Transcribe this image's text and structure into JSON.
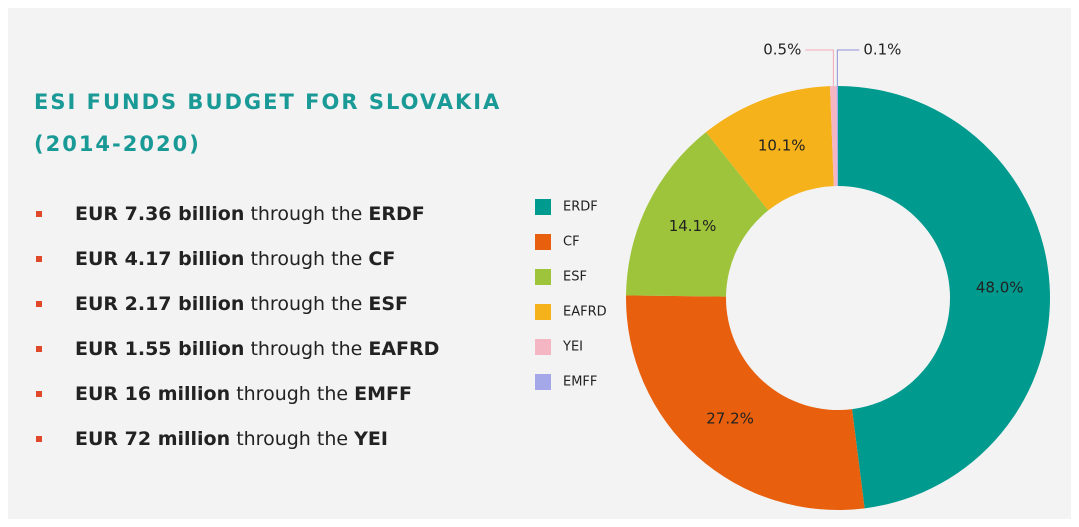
{
  "chart_data": {
    "type": "pie",
    "title": "ESI FUNDS BUDGET FOR SLOVAKIA",
    "subtitle": "(2014-2020)",
    "categories": [
      "ERDF",
      "CF",
      "ESF",
      "EAFRD",
      "YEI",
      "EMFF"
    ],
    "values": [
      48.0,
      27.2,
      14.1,
      10.1,
      0.5,
      0.1
    ],
    "value_labels": [
      "48.0%",
      "27.2%",
      "14.1%",
      "10.1%",
      "0.5%",
      "0.1%"
    ],
    "colors": [
      "#009a8e",
      "#e8600e",
      "#9dc43a",
      "#f5b21a",
      "#f4b6c2",
      "#a5a8e8"
    ],
    "donut": true,
    "legend": "left"
  },
  "bullets": [
    [
      "EUR 7.36 billion",
      "through the",
      "ERDF"
    ],
    [
      "EUR 4.17 billion",
      "through the",
      "CF"
    ],
    [
      "EUR 2.17 billion",
      "through the",
      "ESF"
    ],
    [
      "EUR 1.55 billion",
      "through the",
      "EAFRD"
    ],
    [
      "EUR 16 million",
      "through the",
      "EMFF"
    ],
    [
      "EUR 72 million",
      "through the",
      "YEI"
    ]
  ]
}
